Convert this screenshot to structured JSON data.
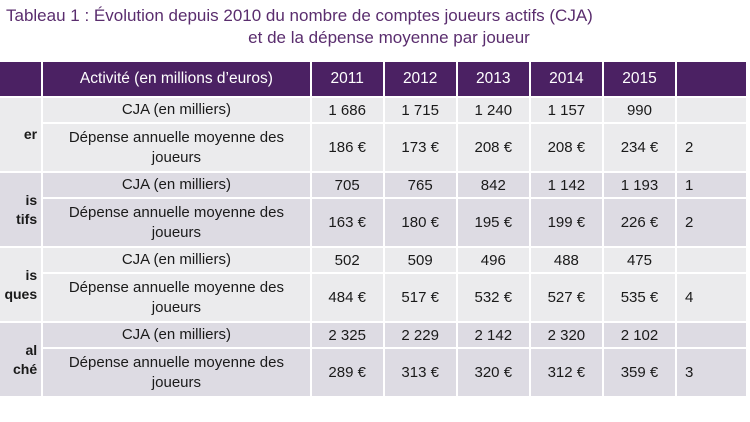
{
  "title": {
    "line1": "Tableau 1 : Évolution depuis 2010 du nombre de comptes joueurs actifs (CJA)",
    "line2": "et de la dépense moyenne par joueur"
  },
  "colors": {
    "header_bg": "#4b2163",
    "title_text": "#5a2d6e",
    "band_light": "#ebebed",
    "band_dark": "#dddbe3"
  },
  "table": {
    "header": {
      "activity": "Activité (en millions d’euros)",
      "years": [
        "2011",
        "2012",
        "2013",
        "2014",
        "2015"
      ]
    },
    "groups": [
      {
        "category": "er",
        "rows": [
          {
            "label": "CJA (en milliers)",
            "values": [
              "1 686",
              "1 715",
              "1 240",
              "1 157",
              "990"
            ]
          },
          {
            "label": "Dépense annuelle moyenne des joueurs",
            "values": [
              "186 €",
              "173 €",
              "208 €",
              "208 €",
              "234 €"
            ],
            "cut": "2"
          }
        ]
      },
      {
        "category": "is\ntifs",
        "rows": [
          {
            "label": "CJA (en milliers)",
            "values": [
              "705",
              "765",
              "842",
              "1 142",
              "1 193"
            ],
            "cut": "1"
          },
          {
            "label": "Dépense annuelle moyenne des joueurs",
            "values": [
              "163 €",
              "180 €",
              "195 €",
              "199 €",
              "226 €"
            ],
            "cut": "2"
          }
        ]
      },
      {
        "category": "is\nques",
        "rows": [
          {
            "label": "CJA (en milliers)",
            "values": [
              "502",
              "509",
              "496",
              "488",
              "475"
            ]
          },
          {
            "label": "Dépense annuelle moyenne des joueurs",
            "values": [
              "484 €",
              "517 €",
              "532 €",
              "527 €",
              "535 €"
            ],
            "cut": "4"
          }
        ]
      },
      {
        "category": "al\nché",
        "rows": [
          {
            "label": "CJA (en milliers)",
            "values": [
              "2 325",
              "2 229",
              "2 142",
              "2 320",
              "2 102"
            ]
          },
          {
            "label": "Dépense annuelle moyenne des joueurs",
            "values": [
              "289 €",
              "313 €",
              "320 €",
              "312 €",
              "359 €"
            ],
            "cut": "3"
          }
        ]
      }
    ]
  }
}
